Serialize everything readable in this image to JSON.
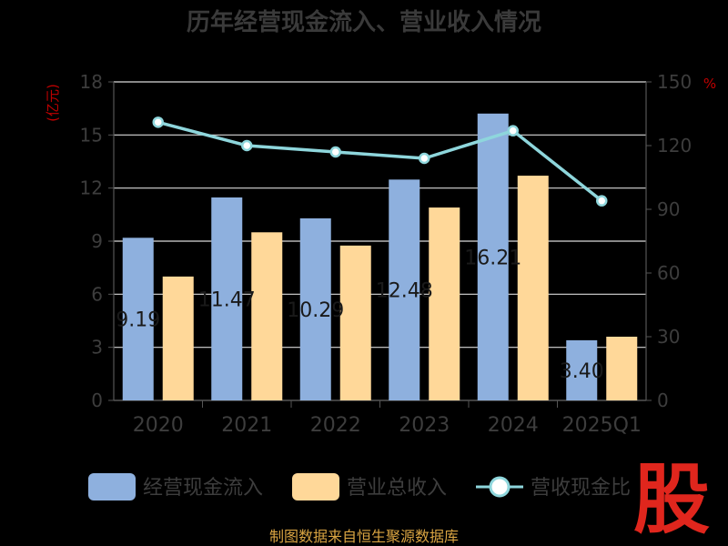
{
  "chart_data": {
    "type": "bar",
    "title": "历年经营现金流入、营业收入情况",
    "categories": [
      "2020",
      "2021",
      "2022",
      "2023",
      "2024",
      "2025Q1"
    ],
    "y_left": {
      "unit": "(亿元)",
      "ylim": [
        0,
        18
      ],
      "ticks": [
        0,
        3,
        6,
        9,
        12,
        15,
        18
      ]
    },
    "y_right": {
      "unit": "%",
      "ylim": [
        0,
        150
      ],
      "ticks": [
        0,
        30,
        60,
        90,
        120,
        150
      ]
    },
    "series": [
      {
        "name": "经营现金流入",
        "type": "bar",
        "axis": "left",
        "color": "#8eb0de",
        "values": [
          9.19,
          11.47,
          10.29,
          12.48,
          16.21,
          3.4
        ],
        "labels": [
          "9.19",
          "11.47",
          "10.29",
          "12.48",
          "16.21",
          "3.40"
        ]
      },
      {
        "name": "营业总收入",
        "type": "bar",
        "axis": "left",
        "color": "#ffd899",
        "values": [
          7.0,
          9.5,
          8.75,
          10.9,
          12.7,
          3.6
        ]
      },
      {
        "name": "营收现金比",
        "type": "line",
        "axis": "right",
        "color": "#8ed6dc",
        "values": [
          131,
          120,
          117,
          114,
          127,
          94
        ]
      }
    ],
    "grid": true,
    "legend": "bottom",
    "source": "制图数据来自恒生聚源数据库",
    "logo": "股"
  }
}
